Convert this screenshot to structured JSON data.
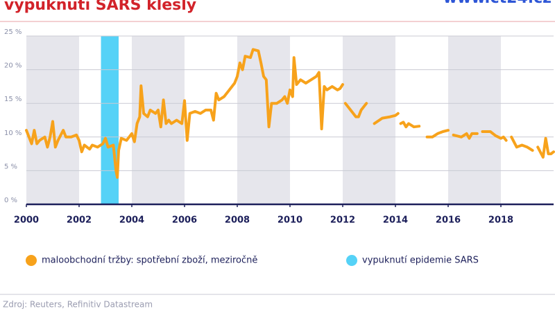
{
  "chart_data": {
    "type": "line",
    "title": "vypuknutí SARS klesly",
    "logo": "www.ct24.cz",
    "source": "Zdroj: Reuters, Refinitiv Datastream",
    "xlim": [
      2000,
      2020
    ],
    "xticks": [
      2000,
      2002,
      2004,
      2006,
      2008,
      2010,
      2012,
      2014,
      2016,
      2018
    ],
    "ylim": [
      0,
      25
    ],
    "yticks": [
      {
        "value": 0,
        "label": "0 %"
      },
      {
        "value": 5,
        "label": "5 %"
      },
      {
        "value": 10,
        "label": "10 %"
      },
      {
        "value": 15,
        "label": "15 %"
      },
      {
        "value": 20,
        "label": "20 %"
      },
      {
        "value": 25,
        "label": "25 %"
      }
    ],
    "grid": true,
    "series": [
      {
        "name": "maloobchodní tržby: spotřební zboží, meziročně",
        "color": "#f7a21b",
        "x": [
          2000.0,
          2000.1,
          2000.2,
          2000.3,
          2000.4,
          2000.5,
          2000.7,
          2000.8,
          2000.9,
          2001.0,
          2001.1,
          2001.2,
          2001.4,
          2001.5,
          2001.7,
          2001.9,
          2002.0,
          2002.1,
          2002.2,
          2002.4,
          2002.5,
          2002.7,
          2002.9,
          2003.0,
          2003.1,
          2003.3,
          2003.4,
          2003.45,
          2003.5,
          2003.6,
          2003.8,
          2003.9,
          2004.0,
          2004.1,
          2004.2,
          2004.3,
          2004.35,
          2004.45,
          2004.6,
          2004.7,
          2004.9,
          2005.0,
          2005.1,
          2005.2,
          2005.3,
          2005.4,
          2005.5,
          2005.7,
          2005.9,
          2006.0,
          2006.1,
          2006.2,
          2006.4,
          2006.6,
          2006.8,
          2007.0,
          2007.1,
          2007.2,
          2007.3,
          2007.5,
          2007.7,
          2007.9,
          2008.0,
          2008.1,
          2008.2,
          2008.3,
          2008.5,
          2008.6,
          2008.8,
          2008.9,
          2009.0,
          2009.1,
          2009.2,
          2009.3,
          2009.5,
          2009.7,
          2009.8,
          2009.9,
          2010.0,
          2010.1,
          2010.15,
          2010.25,
          2010.4,
          2010.6,
          2010.8,
          2011.0,
          2011.1,
          2011.2,
          2011.3,
          2011.4,
          2011.6,
          2011.8,
          2011.9,
          2012.0,
          null,
          2012.1,
          2012.3,
          2012.5,
          2012.6,
          2012.7,
          2012.9,
          null,
          2013.2,
          2013.5,
          2013.8,
          2014.0,
          2014.1,
          null,
          2014.2,
          2014.3,
          2014.4,
          2014.5,
          2014.7,
          2014.9,
          null,
          2015.2,
          2015.4,
          2015.6,
          2015.8,
          2016.0,
          null,
          2016.2,
          2016.5,
          2016.7,
          2016.8,
          2016.9,
          2017.1,
          null,
          2017.3,
          2017.6,
          2017.8,
          2018.0,
          2018.1,
          2018.2,
          null,
          2018.4,
          2018.6,
          2018.8,
          2019.0,
          2019.2,
          null,
          2019.4,
          2019.6,
          2019.7,
          2019.8,
          2019.9,
          2020.0
        ],
        "values": [
          11,
          10,
          9,
          11,
          9,
          9.5,
          10,
          8.5,
          10,
          12.3,
          8.5,
          9.5,
          11,
          10,
          10,
          10.3,
          9.5,
          7.8,
          8.8,
          8.2,
          8.8,
          8.5,
          9,
          9.8,
          8.5,
          8.8,
          5,
          4,
          8,
          9.8,
          9.5,
          10,
          10.5,
          9.3,
          12,
          13,
          17.6,
          13.5,
          13,
          14,
          13.5,
          14,
          11.5,
          15.5,
          12,
          12.5,
          12,
          12.5,
          12,
          15.4,
          9.5,
          13.5,
          13.8,
          13.5,
          14,
          14,
          12.5,
          16.5,
          15.5,
          16,
          17,
          18,
          19,
          21,
          20,
          22,
          21.8,
          23,
          22.8,
          21,
          19,
          18.5,
          11.5,
          15,
          15,
          15.5,
          16,
          15,
          17,
          16,
          21.8,
          17.8,
          18.5,
          18,
          18.5,
          19,
          19.6,
          11.2,
          17.5,
          17,
          17.5,
          17,
          17.2,
          17.8,
          null,
          15,
          14,
          13,
          13,
          14,
          15,
          null,
          12,
          12.8,
          13,
          13.2,
          13.5,
          null,
          12,
          12.2,
          11.5,
          12,
          11.5,
          11.6,
          null,
          10,
          10,
          10.5,
          10.8,
          11,
          null,
          10.3,
          10,
          10.5,
          9.8,
          10.5,
          10.5,
          null,
          10.8,
          10.8,
          10.2,
          9.8,
          10,
          9.5,
          null,
          10,
          8.5,
          8.8,
          8.5,
          8,
          null,
          8.5,
          7,
          9.8,
          7.5,
          7.5,
          7.8
        ]
      }
    ],
    "bands": [
      {
        "name": "vypuknutí epidemie SARS",
        "color": "#55d2f7",
        "x": [
          2002.83,
          2003.5
        ]
      }
    ]
  }
}
